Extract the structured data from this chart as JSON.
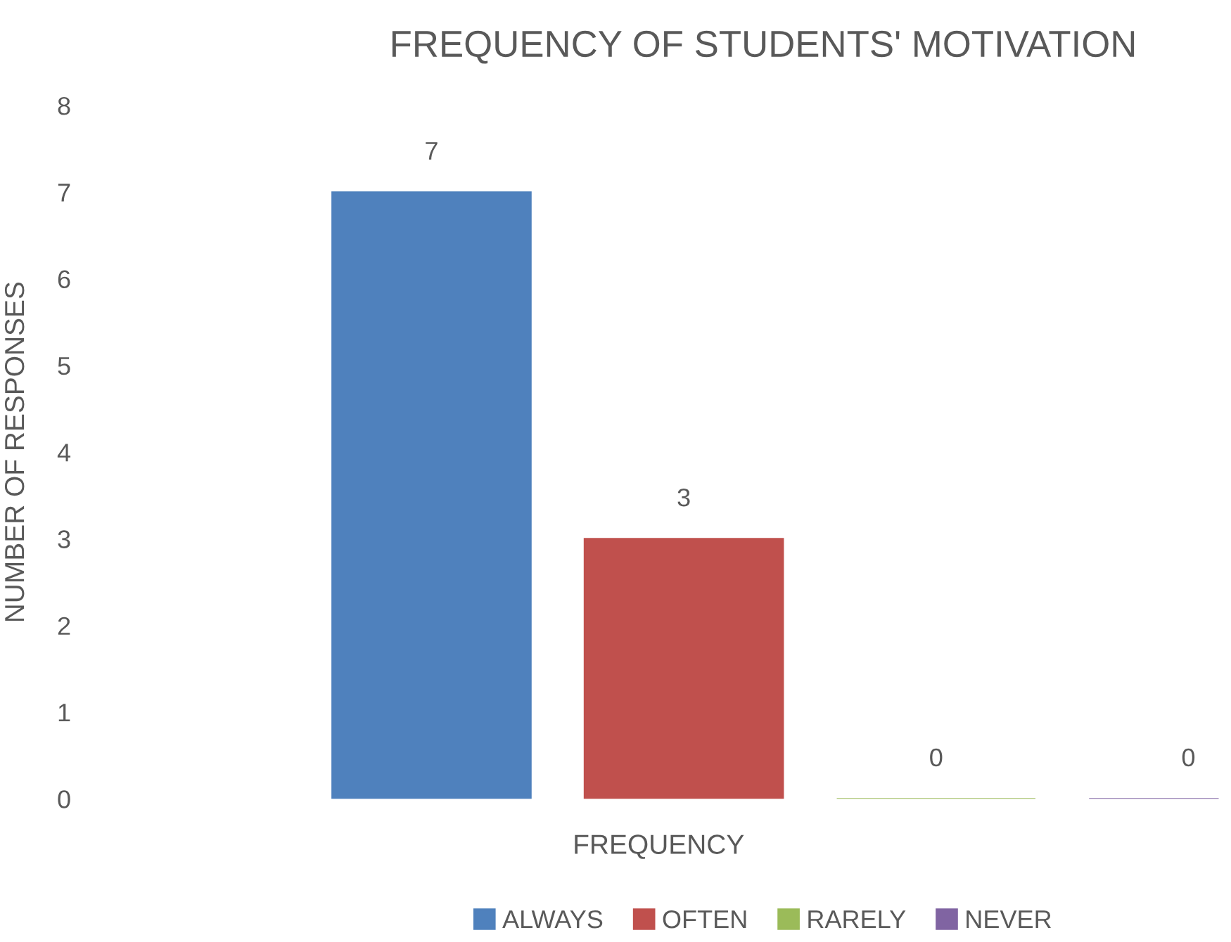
{
  "chart_data": {
    "type": "bar",
    "title": "FREQUENCY OF STUDENTS' MOTIVATION",
    "xlabel": "FREQUENCY",
    "ylabel": "NUMBER OF RESPONSES",
    "categories": [
      null
    ],
    "series": [
      {
        "name": "ALWAYS",
        "color": "#4f81bd",
        "values": [
          7
        ]
      },
      {
        "name": "OFTEN",
        "color": "#c0504d",
        "values": [
          3
        ]
      },
      {
        "name": "RARELY",
        "color": "#9bbb59",
        "values": [
          0
        ]
      },
      {
        "name": "NEVER",
        "color": "#8064a2",
        "values": [
          0
        ]
      }
    ],
    "ylim": [
      0,
      8
    ],
    "yticks": [
      0,
      1,
      2,
      3,
      4,
      5,
      6,
      7,
      8
    ],
    "grid": false,
    "legend": "bottom",
    "data_labels": true
  }
}
